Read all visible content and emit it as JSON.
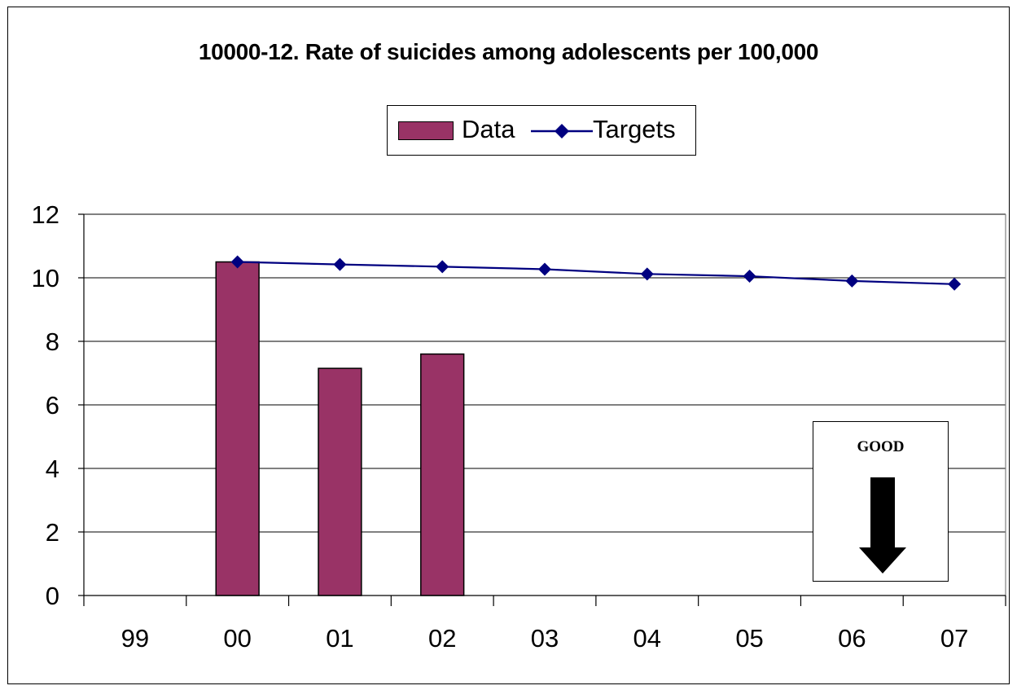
{
  "chart_data": {
    "type": "bar",
    "title": "10000-12. Rate of suicides among adolescents per 100,000",
    "categories": [
      "99",
      "00",
      "01",
      "02",
      "03",
      "04",
      "05",
      "06",
      "07"
    ],
    "series": [
      {
        "name": "Data",
        "type": "bar",
        "color": "#993366",
        "values": [
          null,
          10.5,
          7.15,
          7.6,
          null,
          null,
          null,
          null,
          null
        ]
      },
      {
        "name": "Targets",
        "type": "line",
        "color": "#000080",
        "marker": "diamond",
        "values": [
          null,
          10.5,
          10.42,
          10.35,
          10.27,
          10.12,
          10.05,
          9.9,
          9.8
        ]
      }
    ],
    "ylim": [
      0,
      12
    ],
    "yticks": [
      0,
      2,
      4,
      6,
      8,
      10,
      12
    ],
    "grid": true,
    "legend_position": "top-center"
  },
  "annotation": {
    "label": "GOOD",
    "icon": "down-arrow-icon"
  }
}
